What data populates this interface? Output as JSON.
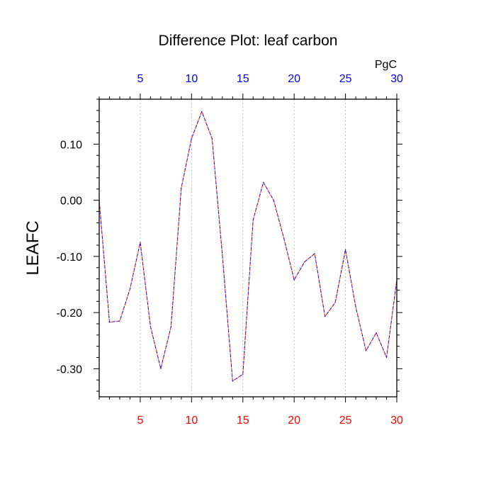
{
  "chart_data": {
    "type": "line",
    "title": "Difference Plot: leaf carbon",
    "units": "PgC",
    "ylabel": "LEAFC",
    "xlabel": "",
    "xlim": [
      1,
      30
    ],
    "ylim": [
      -0.35,
      0.18
    ],
    "x_ticks": [
      5,
      10,
      15,
      20,
      25,
      30
    ],
    "y_ticks": [
      0.1,
      0.0,
      -0.1,
      -0.2,
      -0.3
    ],
    "y_tick_labels": [
      "0.10",
      "0.00",
      "-0.10",
      "-0.20",
      "-0.30"
    ],
    "vertical_grid": true,
    "top_axis_tick_color": "#0000ff",
    "bottom_axis_tick_color": "#ff0000",
    "series": [
      {
        "color_a": "#ff0000",
        "color_b": "#0000ff",
        "x": [
          1,
          2,
          3,
          4,
          5,
          6,
          7,
          8,
          9,
          10,
          11,
          12,
          13,
          14,
          15,
          16,
          17,
          18,
          19,
          20,
          21,
          22,
          23,
          24,
          25,
          26,
          27,
          28,
          29,
          30
        ],
        "values": [
          0.0,
          -0.217,
          -0.215,
          -0.158,
          -0.075,
          -0.225,
          -0.3,
          -0.225,
          0.022,
          0.11,
          0.158,
          0.11,
          -0.097,
          -0.322,
          -0.31,
          -0.035,
          0.032,
          0.0,
          -0.068,
          -0.142,
          -0.11,
          -0.095,
          -0.207,
          -0.182,
          -0.088,
          -0.19,
          -0.268,
          -0.236,
          -0.28,
          -0.142
        ]
      }
    ]
  }
}
